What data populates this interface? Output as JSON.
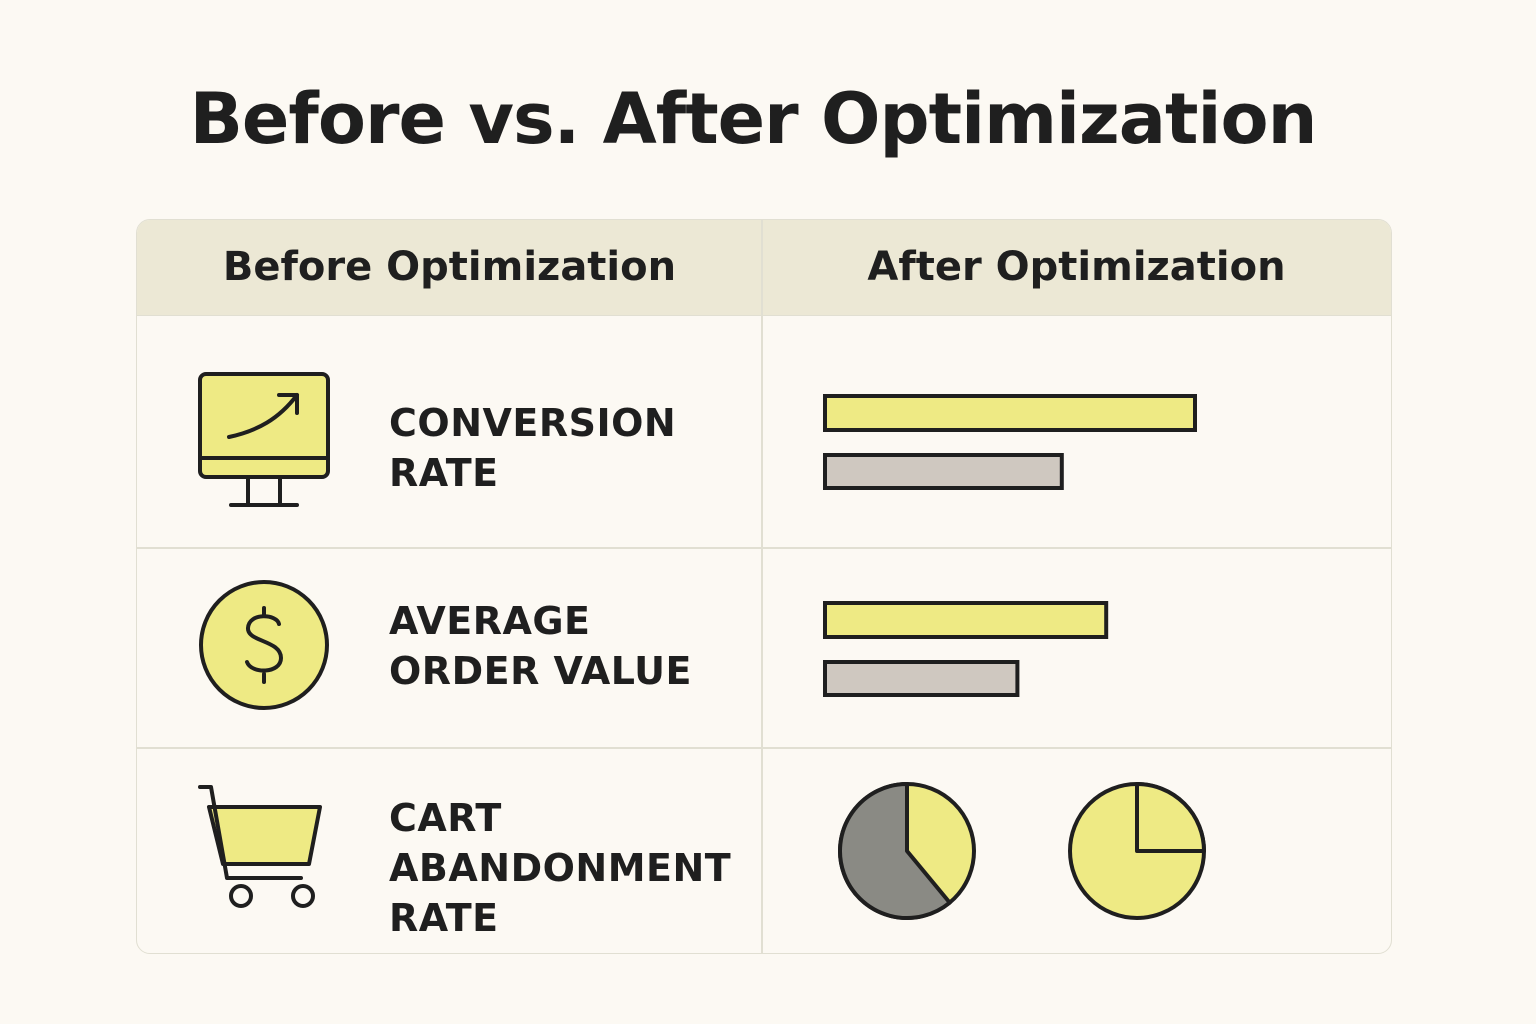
{
  "title": "Before vs. After Optimization",
  "header": {
    "before": "Before Optimization",
    "after": "After Optimization"
  },
  "colors": {
    "after_fill": "#eeea84",
    "before_fill": "#cfc8c0",
    "pie_before": "#8a8a84",
    "outline": "#1f1f1f"
  },
  "rows": [
    {
      "icon": "monitor-trend-icon",
      "label_lines": [
        "CONVERSION",
        "RATE"
      ]
    },
    {
      "icon": "dollar-coin-icon",
      "label_lines": [
        "AVERAGE",
        "ORDER VALUE"
      ]
    },
    {
      "icon": "shopping-cart-icon",
      "label_lines": [
        "CART",
        "ABANDONMENT",
        "RATE"
      ]
    }
  ],
  "chart_data": [
    {
      "type": "bar",
      "metric": "Conversion Rate",
      "series": [
        {
          "name": "After Optimization",
          "values": [
            100
          ]
        },
        {
          "name": "Before Optimization",
          "values": [
            64
          ]
        }
      ],
      "scale_max": 100
    },
    {
      "type": "bar",
      "metric": "Average Order Value",
      "series": [
        {
          "name": "After Optimization",
          "values": [
            76
          ]
        },
        {
          "name": "Before Optimization",
          "values": [
            52
          ]
        }
      ],
      "scale_max": 100
    },
    {
      "type": "pie",
      "metric": "Cart Abandonment Rate",
      "pies": [
        {
          "name": "Before Optimization",
          "abandon_fraction": 0.61
        },
        {
          "name": "After Optimization",
          "abandon_fraction": 0.25
        }
      ]
    }
  ]
}
